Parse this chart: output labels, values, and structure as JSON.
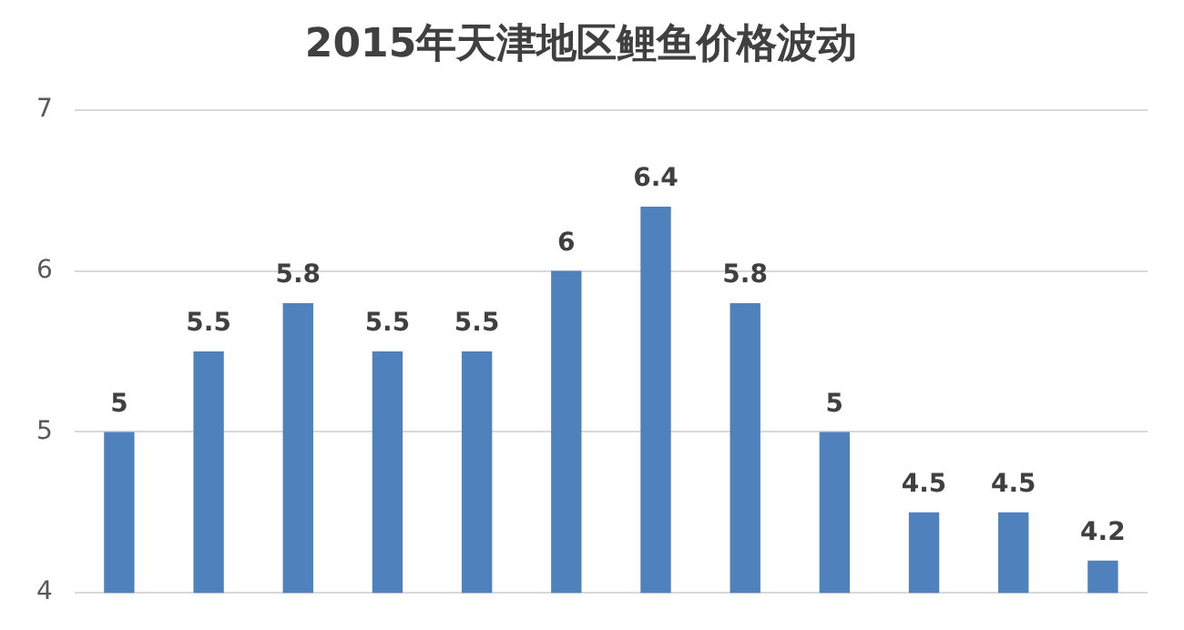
{
  "chart_data": {
    "type": "bar",
    "title": "2015年天津地区鲤鱼价格波动",
    "categories": [
      null,
      null,
      null,
      null,
      null,
      null,
      null,
      null,
      null,
      null,
      null,
      null
    ],
    "values": [
      5,
      5.5,
      5.8,
      5.5,
      5.5,
      6,
      6.4,
      5.8,
      5,
      4.5,
      4.5,
      4.2
    ],
    "color": "#4f81bd",
    "ylim": [
      4,
      7
    ],
    "yticks": [
      4,
      5,
      6,
      7
    ],
    "grid": "y",
    "data_labels": true,
    "tick_labels": "y"
  }
}
